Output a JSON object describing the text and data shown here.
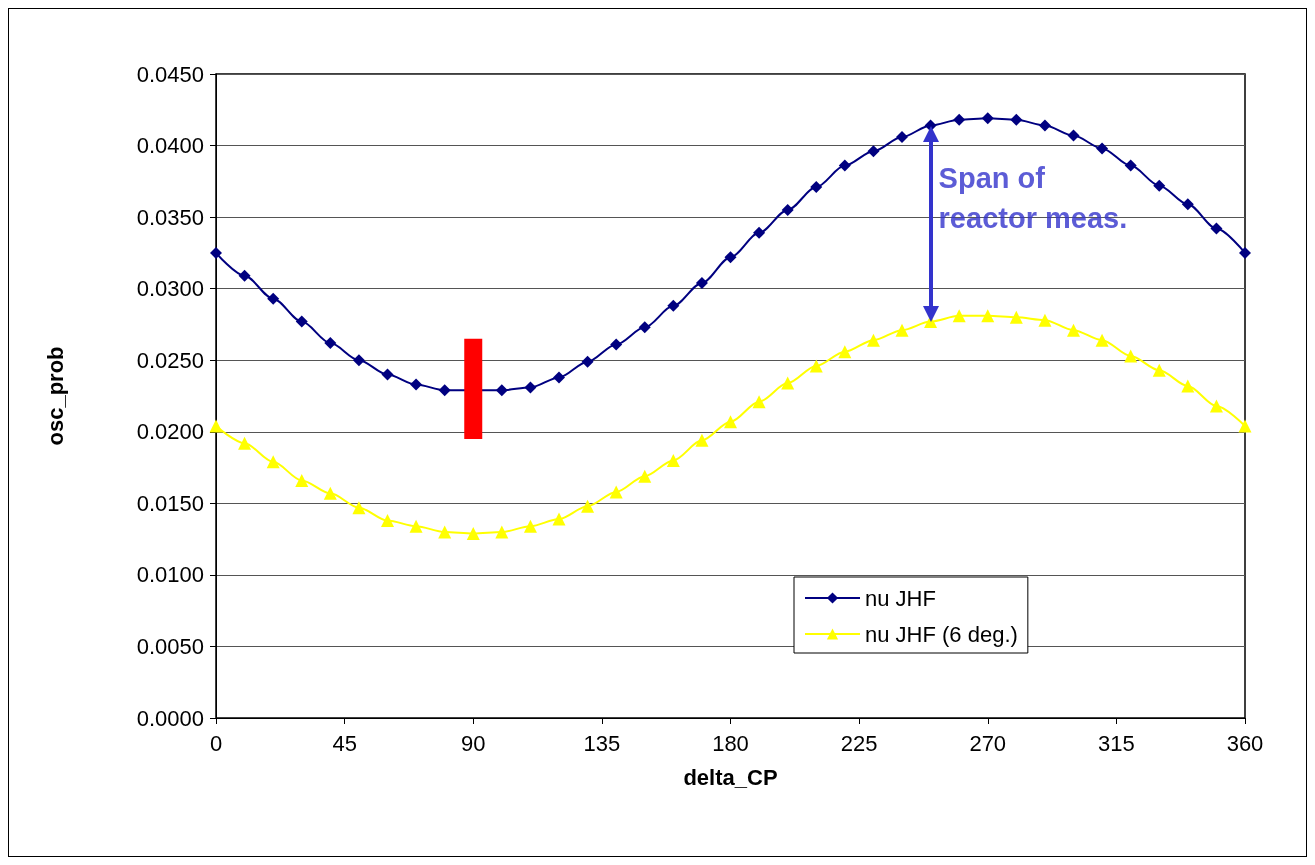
{
  "chart_data": {
    "type": "line",
    "xlabel": "delta_CP",
    "ylabel": "osc_prob",
    "xlim": [
      0,
      360
    ],
    "xticks": [
      0,
      45,
      90,
      135,
      180,
      225,
      270,
      315,
      360
    ],
    "ylim": [
      0,
      0.045
    ],
    "yticks": [
      {
        "value": 0,
        "label": "0.0000"
      },
      {
        "value": 0.005,
        "label": "0.0050"
      },
      {
        "value": 0.01,
        "label": "0.0100"
      },
      {
        "value": 0.015,
        "label": "0.0150"
      },
      {
        "value": 0.02,
        "label": "0.0200"
      },
      {
        "value": 0.025,
        "label": "0.0250"
      },
      {
        "value": 0.03,
        "label": "0.0300"
      },
      {
        "value": 0.035,
        "label": "0.0350"
      },
      {
        "value": 0.04,
        "label": "0.0400"
      },
      {
        "value": 0.045,
        "label": "0.0450"
      }
    ],
    "grid": "y",
    "legend": "bottom right",
    "x": [
      0,
      10,
      20,
      30,
      40,
      50,
      60,
      70,
      80,
      90,
      100,
      110,
      120,
      130,
      140,
      150,
      160,
      170,
      180,
      190,
      200,
      210,
      220,
      230,
      240,
      250,
      260,
      270,
      280,
      290,
      300,
      310,
      320,
      330,
      340,
      350,
      360
    ],
    "series": [
      {
        "name": "nu JHF",
        "color": "#000080",
        "marker": "diamond",
        "values": [
          0.0325,
          0.0309,
          0.0293,
          0.0277,
          0.0262,
          0.025,
          0.024,
          0.0233,
          0.0229,
          null,
          0.0229,
          0.0231,
          0.0238,
          0.0249,
          0.0261,
          0.0273,
          0.0288,
          0.0304,
          0.0322,
          0.0339,
          0.0355,
          0.0371,
          0.0386,
          0.0396,
          0.0406,
          0.0414,
          0.0418,
          0.0419,
          0.0418,
          0.0414,
          0.0407,
          0.0398,
          0.0386,
          0.0372,
          0.0359,
          0.0342,
          0.0325
        ]
      },
      {
        "name": "nu JHF (6 deg.)",
        "color": "#ffff00",
        "marker": "triangle",
        "values": [
          0.0204,
          0.0192,
          0.0179,
          0.0166,
          0.0157,
          0.0147,
          0.0138,
          0.0134,
          0.013,
          0.0129,
          0.013,
          0.0134,
          0.0139,
          0.0148,
          0.0158,
          0.0169,
          0.018,
          0.0194,
          0.0207,
          0.0221,
          0.0234,
          0.0246,
          0.0256,
          0.0264,
          0.0271,
          0.0277,
          0.0281,
          0.0281,
          0.028,
          0.0278,
          0.0271,
          0.0264,
          0.0253,
          0.0243,
          0.0232,
          0.0218,
          0.0204
        ]
      },
      {
        "type": "bar",
        "color": "#ff0000",
        "x": [
          90
        ],
        "base": [
          0.0195
        ],
        "values": [
          0.007
        ]
      }
    ],
    "annotations": [
      {
        "text": "Span of reactor meas.",
        "x": 250,
        "y": 0.0414
      }
    ]
  }
}
